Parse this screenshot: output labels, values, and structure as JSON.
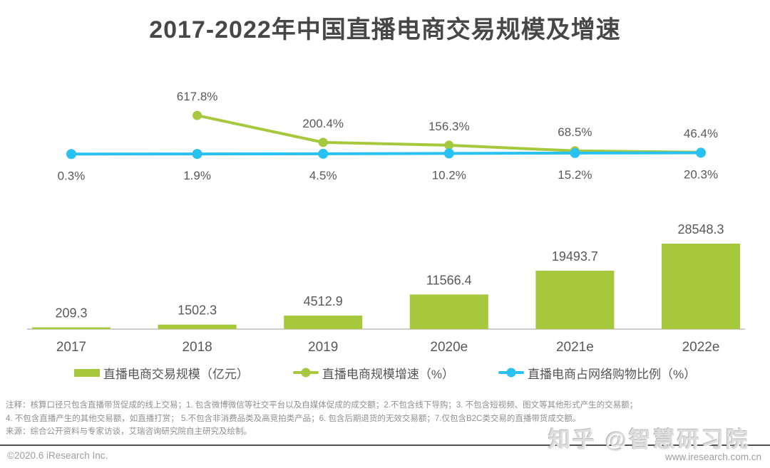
{
  "title": "2017-2022年中国直播电商交易规模及增速",
  "chart_data": {
    "type": "bar",
    "title": "2017-2022年中国直播电商交易规模及增速",
    "categories": [
      "2017",
      "2018",
      "2019",
      "2020e",
      "2021e",
      "2022e"
    ],
    "series": [
      {
        "name": "直播电商交易规模（亿元）",
        "type": "bar",
        "color": "#a5c83c",
        "values": [
          209.3,
          1502.3,
          4512.9,
          11566.4,
          19493.7,
          28548.3
        ]
      },
      {
        "name": "直播电商规模增速（%）",
        "type": "line",
        "color": "#a5c83c",
        "values": [
          null,
          617.8,
          200.4,
          156.3,
          68.5,
          46.4
        ]
      },
      {
        "name": "直播电商占网络购物比例（%）",
        "type": "line",
        "color": "#29c1f1",
        "values": [
          0.3,
          1.9,
          4.5,
          10.2,
          15.2,
          20.3
        ]
      }
    ],
    "xlabel": "",
    "ylabel": "",
    "grid": false,
    "legend_position": "bottom",
    "axis_color": "#9d9d9d",
    "label_color": "#595959"
  },
  "legend": {
    "items": [
      {
        "label": "直播电商交易规模（亿元）",
        "swatch": "bar",
        "color": "#a5c83c"
      },
      {
        "label": "直播电商规模增速（%）",
        "swatch": "line-dot",
        "color": "#a5c83c"
      },
      {
        "label": "直播电商占网络购物比例（%）",
        "swatch": "line-dot",
        "color": "#29c1f1"
      }
    ]
  },
  "notes": {
    "line1": "注释：核算口径只包含直播带货促成的线上交易；1. 包含微博微信等社交平台以及自媒体促成的成交额；2.不包含线下导购；3. 不包含短视频、图文等其他形式产生的交易额；",
    "line2": "4. 不包含直播产生的其他交易额，如直播打赏； 5.不包含非消费品类及高竞拍类产品；6. 包含后期退货的无效交易额；7.仅包含B2C类交易的直播带货成交额。",
    "source": "来源：综合公开资料与专家访谈，艾瑞咨询研究院自主研究及绘制。"
  },
  "watermark": "知乎 @智慧研习院",
  "footer": {
    "copyright": "©2020.6 iResearch Inc.",
    "url": "www.iresearch.com.cn"
  }
}
